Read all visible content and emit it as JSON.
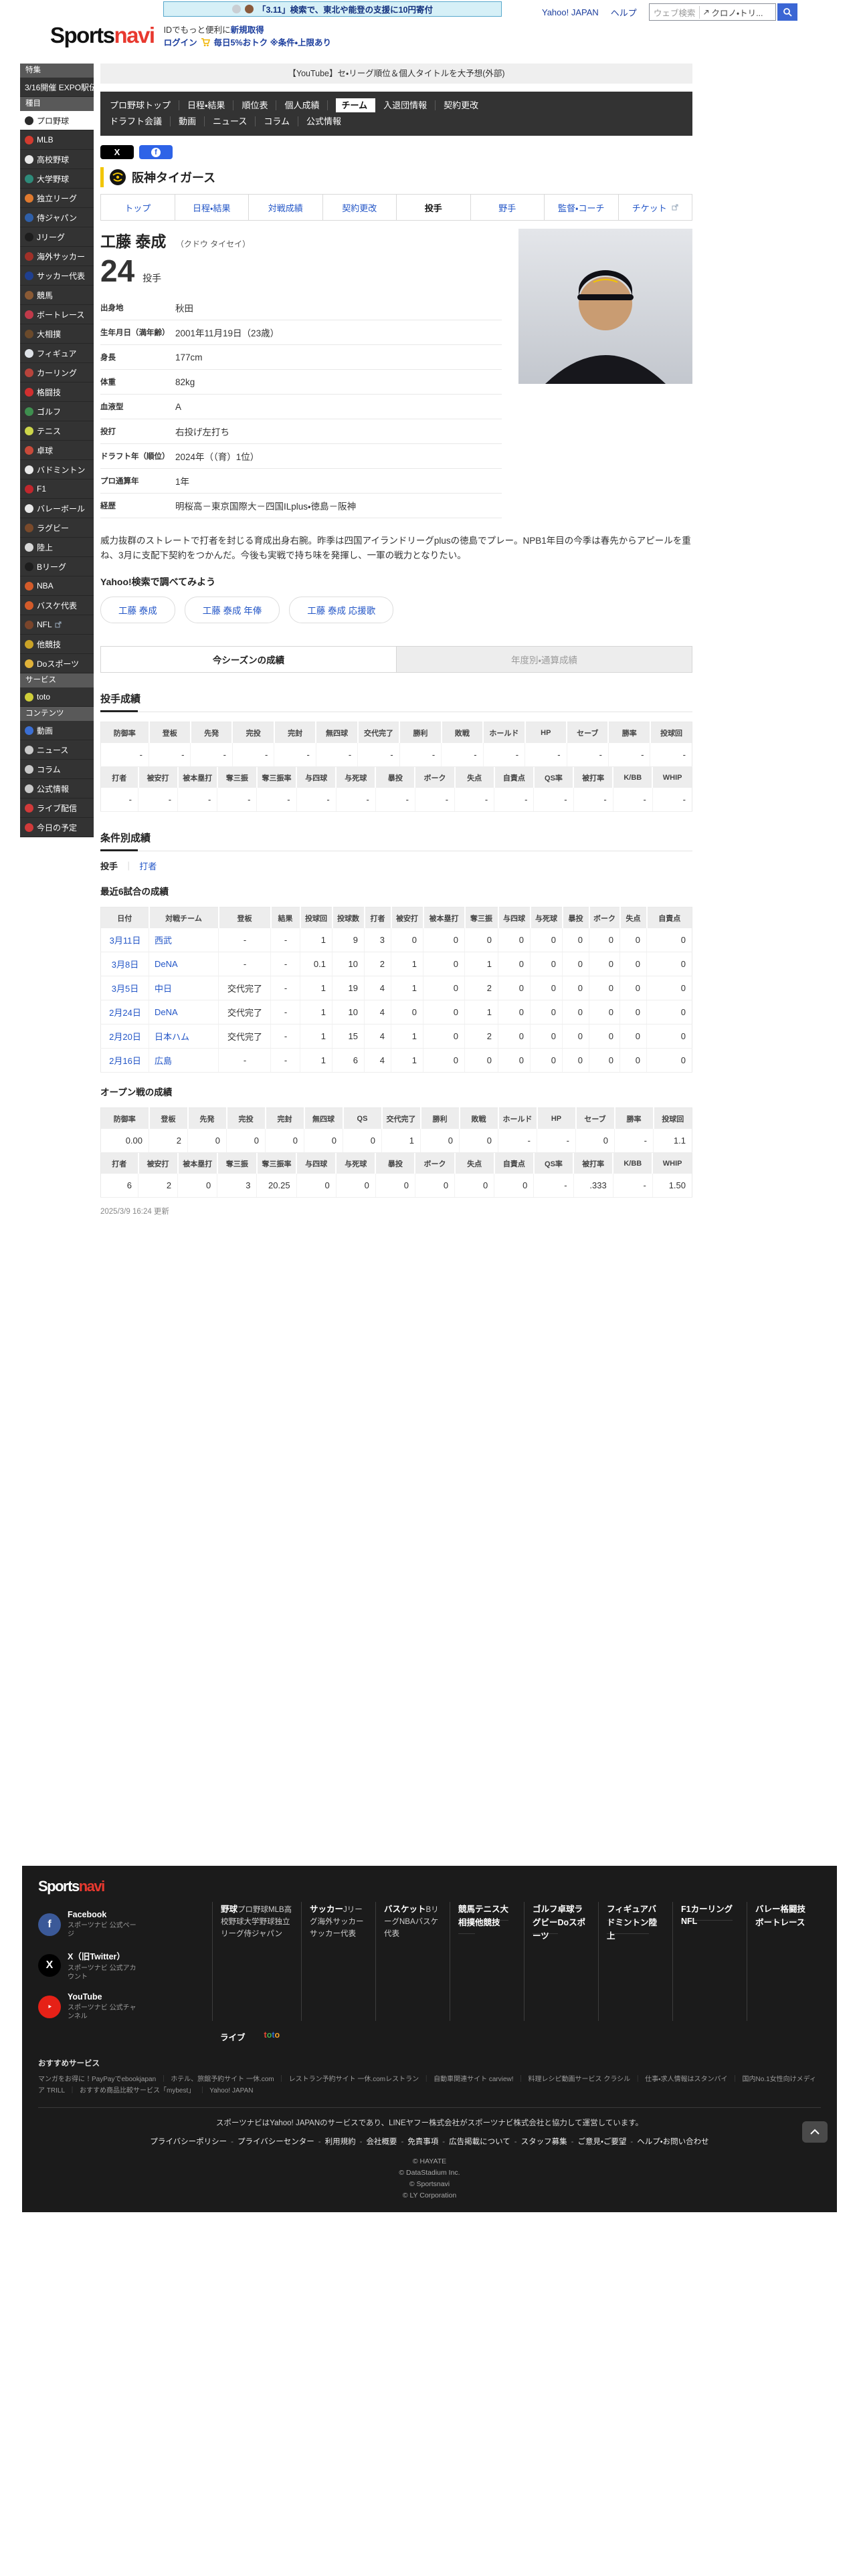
{
  "colors": {
    "brand_red": "#e8392f",
    "link_blue": "#2356c7",
    "team_yellow": "#f2c500",
    "nav_dark": "#333333",
    "footer_bg": "#1b1b1b"
  },
  "topbar": {
    "banner_text": "「3.11」検索で、東北や能登の支援に10円寄付",
    "yahoo_link": "Yahoo! JAPAN",
    "help_link": "ヘルプ",
    "search_placeholder": "ウェブ検索",
    "search_suggestion": "クロノ・トリ..."
  },
  "header": {
    "logo_sports": "Sports",
    "logo_navi": "navi",
    "id_text": "IDでもっと便利に",
    "id_register": "新規取得",
    "login": "ログイン",
    "promo": "毎日5%おトク ※条件・上限あり"
  },
  "sidebar": {
    "rows": [
      {
        "type": "header",
        "id": "tokushu",
        "label": "特集"
      },
      {
        "type": "item",
        "id": "expo-ekiden",
        "label": "3/16開催 EXPO駅伝"
      },
      {
        "type": "header",
        "id": "shumoku",
        "label": "種目"
      },
      {
        "type": "item",
        "id": "pro-yakyu",
        "label": "プロ野球",
        "icon_color": "#2b2b2b",
        "active": true
      },
      {
        "type": "item",
        "id": "mlb",
        "label": "MLB",
        "icon_color": "#d23b2f"
      },
      {
        "type": "item",
        "id": "koko-yakyu",
        "label": "高校野球",
        "icon_color": "#e8e8e8"
      },
      {
        "type": "item",
        "id": "daigaku-yakyu",
        "label": "大学野球",
        "icon_color": "#2e8b7a"
      },
      {
        "type": "item",
        "id": "dokuritsu-league",
        "label": "独立リーグ",
        "icon_color": "#e07a2f"
      },
      {
        "type": "item",
        "id": "samurai-japan",
        "label": "侍ジャパン",
        "icon_color": "#2f5fa8"
      },
      {
        "type": "item",
        "id": "j-league",
        "label": "Jリーグ",
        "icon_color": "#1d1d1d"
      },
      {
        "type": "item",
        "id": "kaigai-soccer",
        "label": "海外サッカー",
        "icon_color": "#a03028"
      },
      {
        "type": "item",
        "id": "soccer-daihyo",
        "label": "サッカー代表",
        "icon_color": "#1f3f8f"
      },
      {
        "type": "item",
        "id": "keiba",
        "label": "競馬",
        "icon_color": "#8a5a35"
      },
      {
        "type": "item",
        "id": "boatrace",
        "label": "ボートレース",
        "icon_color": "#c03a4a"
      },
      {
        "type": "item",
        "id": "ozumo",
        "label": "大相撲",
        "icon_color": "#6b4a2b"
      },
      {
        "type": "item",
        "id": "figure-skating",
        "label": "フィギュア",
        "icon_color": "#dfe3e8"
      },
      {
        "type": "item",
        "id": "curling",
        "label": "カーリング",
        "icon_color": "#b8443c"
      },
      {
        "type": "item",
        "id": "kakutogi",
        "label": "格闘技",
        "icon_color": "#d12f2f"
      },
      {
        "type": "item",
        "id": "golf",
        "label": "ゴルフ",
        "icon_color": "#3f8f4f"
      },
      {
        "type": "item",
        "id": "tennis",
        "label": "テニス",
        "icon_color": "#cdd64a"
      },
      {
        "type": "item",
        "id": "takkyu",
        "label": "卓球",
        "icon_color": "#c84a3a"
      },
      {
        "type": "item",
        "id": "badminton",
        "label": "バドミントン",
        "icon_color": "#e8e8e8"
      },
      {
        "type": "item",
        "id": "f1",
        "label": "F1",
        "icon_color": "#c1272d"
      },
      {
        "type": "item",
        "id": "volleyball",
        "label": "バレーボール",
        "icon_color": "#e8e8e8"
      },
      {
        "type": "item",
        "id": "rugby",
        "label": "ラグビー",
        "icon_color": "#7a4a2b"
      },
      {
        "type": "item",
        "id": "rikujo",
        "label": "陸上",
        "icon_color": "#d8d8d8"
      },
      {
        "type": "item",
        "id": "b-league",
        "label": "Bリーグ",
        "icon_color": "#1d1d1d"
      },
      {
        "type": "item",
        "id": "nba",
        "label": "NBA",
        "icon_color": "#d35b2a"
      },
      {
        "type": "item",
        "id": "basket-daihyo",
        "label": "バスケ代表",
        "icon_color": "#d35b2a"
      },
      {
        "type": "item",
        "id": "nfl",
        "label": "NFL",
        "icon_color": "#7a452b",
        "external": true
      },
      {
        "type": "item",
        "id": "takyogi",
        "label": "他競技",
        "icon_color": "#c9a227"
      },
      {
        "type": "item",
        "id": "do-sports",
        "label": "Doスポーツ",
        "icon_color": "#e0b23a"
      },
      {
        "type": "header",
        "id": "service",
        "label": "サービス"
      },
      {
        "type": "item",
        "id": "toto",
        "label": "toto",
        "icon_color": "#cfce3a"
      },
      {
        "type": "header",
        "id": "contents",
        "label": "コンテンツ"
      },
      {
        "type": "item",
        "id": "douga",
        "label": "動画",
        "icon_color": "#3b6fd4"
      },
      {
        "type": "item",
        "id": "news",
        "label": "ニュース",
        "icon_color": "#c9c9c9"
      },
      {
        "type": "item",
        "id": "column",
        "label": "コラム",
        "icon_color": "#c9c9c9"
      },
      {
        "type": "item",
        "id": "koshiki-joho",
        "label": "公式情報",
        "icon_color": "#c9c9c9"
      },
      {
        "type": "item",
        "id": "live-haishin",
        "label": "ライブ配信",
        "icon_color": "#d13a3a"
      },
      {
        "type": "item",
        "id": "kyou-no-yotei",
        "label": "今日の予定",
        "icon_color": "#d13a3a"
      }
    ]
  },
  "main": {
    "notice": "【YouTube】セ・リーグ順位＆個人タイトルを大予想(外部)",
    "nav_row1": [
      {
        "label": "プロ野球トップ"
      },
      {
        "label": "日程・結果"
      },
      {
        "label": "順位表"
      },
      {
        "label": "個人成績"
      },
      {
        "label": "チーム",
        "active": true
      },
      {
        "label": "入退団情報"
      },
      {
        "label": "契約更改"
      }
    ],
    "nav_row2": [
      {
        "label": "ドラフト会議"
      },
      {
        "label": "動画"
      },
      {
        "label": "ニュース"
      },
      {
        "label": "コラム"
      },
      {
        "label": "公式情報"
      }
    ],
    "team_name": "阪神タイガース",
    "team_tabs": [
      {
        "label": "トップ"
      },
      {
        "label": "日程・結果"
      },
      {
        "label": "対戦成績"
      },
      {
        "label": "契約更改"
      },
      {
        "label": "投手",
        "active": true
      },
      {
        "label": "野手"
      },
      {
        "label": "監督・コーチ"
      },
      {
        "label": "チケット",
        "external": true
      }
    ],
    "player": {
      "name": "工藤 泰成",
      "kana": "（クドウ タイセイ）",
      "number": "24",
      "position": "投手"
    },
    "profile": [
      {
        "label": "出身地",
        "value": "秋田"
      },
      {
        "label": "生年月日（満年齢）",
        "value": "2001年11月19日（23歳）"
      },
      {
        "label": "身長",
        "value": "177cm"
      },
      {
        "label": "体重",
        "value": "82kg"
      },
      {
        "label": "血液型",
        "value": "A"
      },
      {
        "label": "投打",
        "value": "右投げ左打ち"
      },
      {
        "label": "ドラフト年（順位）",
        "value": "2024年（（育）1位）"
      },
      {
        "label": "プロ通算年",
        "value": "1年"
      },
      {
        "label": "経歴",
        "value": "明桜高－東京国際大－四国ILplus・徳島－阪神"
      }
    ],
    "bio": "威力抜群のストレートで打者を封じる育成出身右腕。昨季は四国アイランドリーグplusの徳島でプレー。NPB1年目の今季は春先からアピールを重ね、3月に支配下契約をつかんだ。今後も実戦で持ち味を発揮し、一軍の戦力となりたい。",
    "search_heading": "Yahoo!検索で調べてみよう",
    "search_pills": [
      "工藤 泰成",
      "工藤 泰成 年俸",
      "工藤 泰成 応援歌"
    ],
    "season_tabs": [
      "今シーズンの成績",
      "年度別・通算成績"
    ],
    "pitching_heading": "投手成績",
    "condition_heading": "条件別成績",
    "condition_pitcher": "投手",
    "condition_batter": "打者",
    "recent_heading": "最近6試合の成績",
    "open_heading": "オープン戦の成績",
    "updated": "2025/3/9 16:24 更新",
    "stats": {
      "season_table1": {
        "headers": [
          "防御率",
          "登板",
          "先発",
          "完投",
          "完封",
          "無四球",
          "交代完了",
          "勝利",
          "敗戦",
          "ホールド",
          "HP",
          "セーブ",
          "勝率",
          "投球回"
        ],
        "values": [
          "-",
          "-",
          "-",
          "-",
          "-",
          "-",
          "-",
          "-",
          "-",
          "-",
          "-",
          "-",
          "-",
          "-"
        ]
      },
      "season_table2": {
        "headers": [
          "打者",
          "被安打",
          "被本塁打",
          "奪三振",
          "奪三振率",
          "与四球",
          "与死球",
          "暴投",
          "ボーク",
          "失点",
          "自責点",
          "QS率",
          "被打率",
          "K/BB",
          "WHIP"
        ],
        "values": [
          "-",
          "-",
          "-",
          "-",
          "-",
          "-",
          "-",
          "-",
          "-",
          "-",
          "-",
          "-",
          "-",
          "-",
          "-"
        ]
      },
      "recent_games": {
        "headers": [
          "日付",
          "対戦チーム",
          "登板",
          "結果",
          "投球回",
          "投球数",
          "打者",
          "被安打",
          "被本塁打",
          "奪三振",
          "与四球",
          "与死球",
          "暴投",
          "ボーク",
          "失点",
          "自責点"
        ],
        "rows": [
          [
            "3月11日",
            "西武",
            "-",
            "-",
            "1",
            "9",
            "3",
            "0",
            "0",
            "0",
            "0",
            "0",
            "0",
            "0",
            "0",
            "0"
          ],
          [
            "3月8日",
            "DeNA",
            "-",
            "-",
            "0.1",
            "10",
            "2",
            "1",
            "0",
            "1",
            "0",
            "0",
            "0",
            "0",
            "0",
            "0"
          ],
          [
            "3月5日",
            "中日",
            "交代完了",
            "-",
            "1",
            "19",
            "4",
            "1",
            "0",
            "2",
            "0",
            "0",
            "0",
            "0",
            "0",
            "0"
          ],
          [
            "2月24日",
            "DeNA",
            "交代完了",
            "-",
            "1",
            "10",
            "4",
            "0",
            "0",
            "1",
            "0",
            "0",
            "0",
            "0",
            "0",
            "0"
          ],
          [
            "2月20日",
            "日本ハム",
            "交代完了",
            "-",
            "1",
            "15",
            "4",
            "1",
            "0",
            "2",
            "0",
            "0",
            "0",
            "0",
            "0",
            "0"
          ],
          [
            "2月16日",
            "広島",
            "-",
            "-",
            "1",
            "6",
            "4",
            "1",
            "0",
            "0",
            "0",
            "0",
            "0",
            "0",
            "0",
            "0"
          ]
        ]
      },
      "open_table1": {
        "headers": [
          "防御率",
          "登板",
          "先発",
          "完投",
          "完封",
          "無四球",
          "QS",
          "交代完了",
          "勝利",
          "敗戦",
          "ホールド",
          "HP",
          "セーブ",
          "勝率",
          "投球回"
        ],
        "values": [
          "0.00",
          "2",
          "0",
          "0",
          "0",
          "0",
          "0",
          "1",
          "0",
          "0",
          "-",
          "-",
          "0",
          "-",
          "1.1"
        ]
      },
      "open_table2": {
        "headers": [
          "打者",
          "被安打",
          "被本塁打",
          "奪三振",
          "奪三振率",
          "与四球",
          "与死球",
          "暴投",
          "ボーク",
          "失点",
          "自責点",
          "QS率",
          "被打率",
          "K/BB",
          "WHIP"
        ],
        "values": [
          "6",
          "2",
          "0",
          "3",
          "20.25",
          "0",
          "0",
          "0",
          "0",
          "0",
          "0",
          "-",
          ".333",
          "-",
          "1.50"
        ]
      }
    }
  },
  "footer": {
    "logo_sports": "Sports",
    "logo_navi": "navi",
    "socials": [
      {
        "id": "facebook",
        "name": "Facebook",
        "sub": "スポーツナビ 公式ページ",
        "color": "#3b5998",
        "glyph": "f"
      },
      {
        "id": "x",
        "name": "X（旧Twitter）",
        "sub": "スポーツナビ 公式アカウント",
        "color": "#000000",
        "glyph": "X"
      },
      {
        "id": "youtube",
        "name": "YouTube",
        "sub": "スポーツナビ 公式チャンネル",
        "color": "#e62117",
        "glyph": "▶"
      }
    ],
    "columns": [
      {
        "header": "野球",
        "items": [
          "プロ野球",
          "MLB",
          "高校野球",
          "大学野球",
          "独立リーグ",
          "侍ジャパン"
        ]
      },
      {
        "header": "サッカー",
        "items": [
          "Jリーグ",
          "海外サッカー",
          "サッカー代表"
        ]
      },
      {
        "header": "バスケット",
        "items": [
          "Bリーグ",
          "NBA",
          "バスケ代表"
        ]
      },
      {
        "bold_items": [
          "競馬",
          "テニス",
          "大相撲",
          "他競技"
        ]
      },
      {
        "bold_items": [
          "ゴルフ",
          "卓球",
          "ラグビー",
          "Doスポーツ"
        ]
      },
      {
        "bold_items": [
          "フィギュア",
          "バドミントン",
          "陸上"
        ]
      },
      {
        "bold_items": [
          "F1",
          "カーリング",
          "NFL"
        ]
      },
      {
        "bold_items": [
          "バレー",
          "格闘技",
          "ボートレース"
        ]
      }
    ],
    "extra_links": [
      "ライブ",
      "toto"
    ],
    "reco_heading": "おすすめサービス",
    "reco_links": [
      "マンガをお得に！PayPayでebookjapan",
      "ホテル、旅館予約サイト 一休.com",
      "レストラン予約サイト 一休.comレストラン",
      "自動車関連サイト carview!",
      "料理レシピ動画サービス クラシル",
      "仕事・求人情報はスタンバイ",
      "国内No.1女性向けメディア TRILL",
      "おすすめ商品比較サービス「mybest」",
      "Yahoo! JAPAN"
    ],
    "note": "スポーツナビはYahoo! JAPANのサービスであり、LINEヤフー株式会社がスポーツナビ株式会社と協力して運営しています。",
    "policies": [
      "プライバシーポリシー",
      "プライバシーセンター",
      "利用規約",
      "会社概要",
      "免責事項",
      "広告掲載について",
      "スタッフ募集",
      "ご意見・ご要望",
      "ヘルプ・お問い合わせ"
    ],
    "copyrights": [
      "© HAYATE",
      "© DataStadium Inc.",
      "© Sportsnavi",
      "© LY Corporation"
    ]
  }
}
